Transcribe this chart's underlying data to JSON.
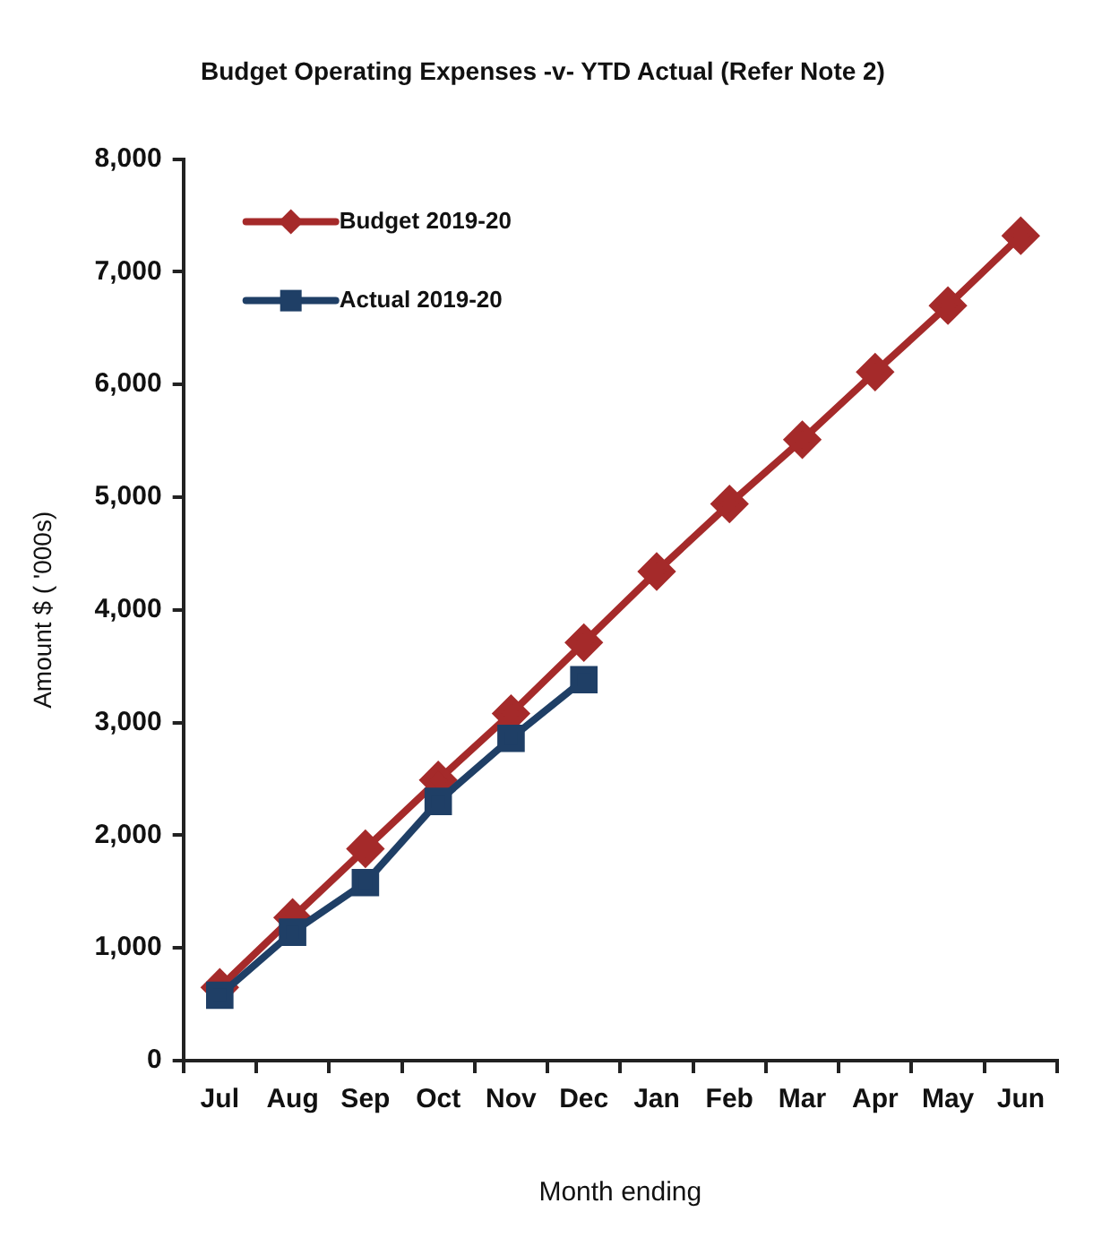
{
  "chart_data": {
    "type": "line",
    "title": "Budget Operating Expenses -v- YTD Actual (Refer Note 2)",
    "xlabel": "Month ending",
    "ylabel": "Amount $ ( '000s)",
    "categories": [
      "Jul",
      "Aug",
      "Sep",
      "Oct",
      "Nov",
      "Dec",
      "Jan",
      "Feb",
      "Mar",
      "Apr",
      "May",
      "Jun"
    ],
    "series": [
      {
        "name": "Budget 2019-20",
        "color": "#a52a2a",
        "marker": "diamond",
        "values": [
          650,
          1270,
          1880,
          2490,
          3080,
          3710,
          4340,
          4940,
          5510,
          6110,
          6700,
          7320
        ]
      },
      {
        "name": "Actual 2019-20",
        "color": "#1f3f66",
        "marker": "square",
        "values": [
          580,
          1140,
          1580,
          2300,
          2860,
          3380,
          null,
          null,
          null,
          null,
          null,
          null
        ]
      }
    ],
    "ylim": [
      0,
      8000
    ],
    "yticks": [
      0,
      {
        "value": 1000,
        "label": "1,000"
      },
      {
        "value": 2000,
        "label": "2,000"
      },
      {
        "value": 3000,
        "label": "3,000"
      },
      {
        "value": 4000,
        "label": "4,000"
      },
      {
        "value": 5000,
        "label": "5,000"
      },
      {
        "value": 6000,
        "label": "6,000"
      },
      {
        "value": 7000,
        "label": "7,000"
      },
      {
        "value": 8000,
        "label": "8,000"
      }
    ],
    "grid": false,
    "legend": "top left"
  }
}
